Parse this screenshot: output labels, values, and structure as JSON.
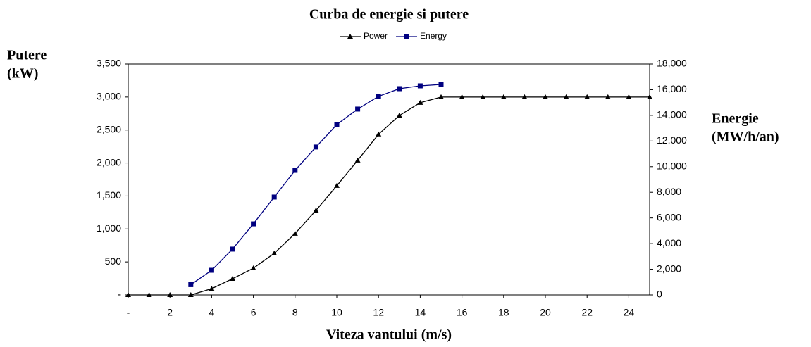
{
  "chart_data": {
    "type": "line",
    "title": "Curba de energie si putere",
    "xlabel": "Viteza vantului (m/s)",
    "ylabel": [
      "Putere",
      "(kW)"
    ],
    "y2label": [
      "Energie",
      "(MW/h/an)"
    ],
    "x": [
      0,
      1,
      2,
      3,
      4,
      5,
      6,
      7,
      8,
      9,
      10,
      11,
      12,
      13,
      14,
      15,
      16,
      17,
      18,
      19,
      20,
      21,
      22,
      23,
      24,
      25
    ],
    "series": [
      {
        "name": "Power",
        "color": "#000000",
        "marker": "triangle",
        "values": [
          0,
          0,
          0,
          0,
          95,
          245,
          405,
          630,
          930,
          1280,
          1655,
          2040,
          2435,
          2720,
          2915,
          3000,
          3000,
          3000,
          3000,
          3000,
          3000,
          3000,
          3000,
          3000,
          3000,
          3000
        ]
      },
      {
        "name": "Energy",
        "color": "#000080",
        "marker": "square",
        "axis": "y2",
        "values": [
          null,
          null,
          null,
          800,
          1920,
          3570,
          5540,
          7630,
          9710,
          11530,
          13280,
          14490,
          15480,
          16080,
          16300,
          16410,
          null,
          null,
          null,
          null,
          null,
          null,
          null,
          null,
          null,
          null
        ]
      }
    ],
    "xlim": [
      0,
      25
    ],
    "xticks": [
      {
        "value": 0,
        "label": "-"
      },
      2,
      4,
      6,
      8,
      10,
      12,
      14,
      16,
      18,
      20,
      22,
      24
    ],
    "ylim": [
      0,
      3500
    ],
    "yticks": [
      {
        "value": 0,
        "label": "-"
      },
      {
        "value": 500,
        "label": "500"
      },
      {
        "value": 1000,
        "label": "1,000"
      },
      {
        "value": 1500,
        "label": "1,500"
      },
      {
        "value": 2000,
        "label": "2,000"
      },
      {
        "value": 2500,
        "label": "2,500"
      },
      {
        "value": 3000,
        "label": "3,000"
      },
      {
        "value": 3500,
        "label": "3,500"
      }
    ],
    "y2lim": [
      0,
      18000
    ],
    "y2ticks": [
      0,
      {
        "value": 2000,
        "label": "2,000"
      },
      {
        "value": 4000,
        "label": "4,000"
      },
      {
        "value": 6000,
        "label": "6,000"
      },
      {
        "value": 8000,
        "label": "8,000"
      },
      {
        "value": 10000,
        "label": "10,000"
      },
      {
        "value": 12000,
        "label": "12,000"
      },
      {
        "value": 14000,
        "label": "14,000"
      },
      {
        "value": 16000,
        "label": "16,000"
      },
      {
        "value": 18000,
        "label": "18,000"
      }
    ],
    "legend": "top"
  }
}
